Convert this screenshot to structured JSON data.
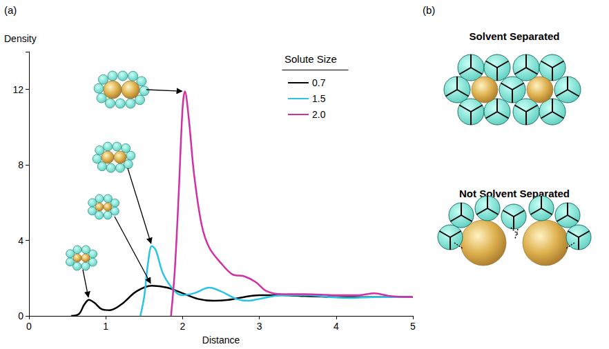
{
  "panel_labels": [
    "(a)",
    "(b)"
  ],
  "chart_data": {
    "type": "line",
    "x_label": "Distance",
    "y_label": "Density",
    "legend_title": "Solute Size",
    "legend": "upper right",
    "grid": false,
    "marker": "none",
    "line_style": "solid",
    "xlim": [
      0,
      5
    ],
    "xticks": [
      0,
      1,
      2,
      3,
      4,
      5
    ],
    "ylim": [
      0,
      14
    ],
    "yticks": [
      0,
      4,
      8,
      12
    ],
    "series": [
      {
        "name": "0.7",
        "color": "#000000",
        "x": [
          0.55,
          0.65,
          0.72,
          0.78,
          0.85,
          0.95,
          1.05,
          1.2,
          1.4,
          1.6,
          1.8,
          2.0,
          2.2,
          2.4,
          2.6,
          2.8,
          3.0,
          3.3,
          3.6,
          4.0,
          4.5,
          5.0
        ],
        "values": [
          0,
          0.1,
          0.6,
          0.85,
          0.7,
          0.35,
          0.3,
          0.6,
          1.3,
          1.6,
          1.5,
          1.2,
          0.9,
          0.8,
          0.85,
          1.0,
          1.1,
          1.1,
          1.05,
          1.0,
          1.0,
          1.0
        ]
      },
      {
        "name": "1.5",
        "color": "#29c3e6",
        "x": [
          1.45,
          1.5,
          1.55,
          1.6,
          1.65,
          1.75,
          1.9,
          2.0,
          2.15,
          2.35,
          2.5,
          2.7,
          2.85,
          3.0,
          3.3,
          3.6,
          3.9,
          4.2,
          4.5,
          5.0
        ],
        "values": [
          0,
          1.0,
          2.8,
          3.7,
          3.5,
          2.2,
          1.3,
          1.1,
          1.2,
          1.5,
          1.3,
          0.9,
          0.8,
          0.9,
          1.1,
          1.1,
          1.0,
          0.95,
          1.0,
          1.0
        ]
      },
      {
        "name": "2.0",
        "color": "#d12fa6",
        "x": [
          1.85,
          1.9,
          1.95,
          2.0,
          2.03,
          2.08,
          2.15,
          2.25,
          2.35,
          2.5,
          2.65,
          2.8,
          2.95,
          3.1,
          3.3,
          3.6,
          4.0,
          4.3,
          4.5,
          4.7,
          5.0
        ],
        "values": [
          0,
          2.5,
          6.5,
          11,
          11.9,
          10.5,
          7.5,
          4.8,
          3.6,
          2.8,
          2.2,
          2.1,
          1.8,
          1.3,
          1.15,
          1.15,
          1.1,
          1.1,
          1.2,
          1.05,
          1.0
        ]
      }
    ]
  },
  "diagram": {
    "panels": [
      {
        "title": "Solvent Separated"
      },
      {
        "title": "Not Solvent Separated"
      }
    ]
  }
}
